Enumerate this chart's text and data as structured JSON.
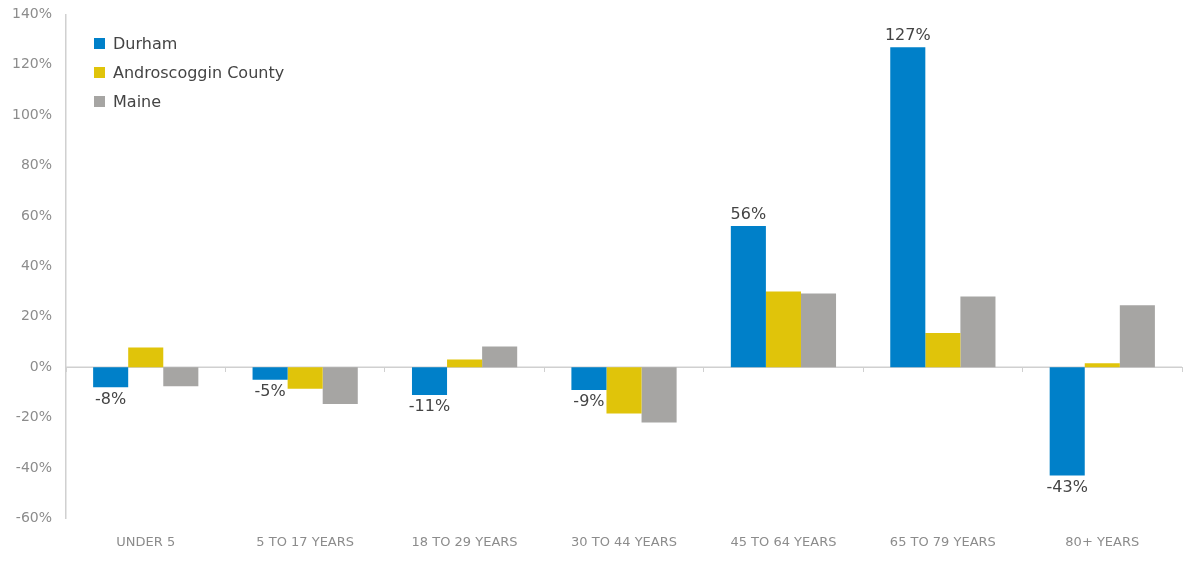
{
  "chart_data": {
    "type": "bar",
    "categories": [
      "UNDER 5",
      "5 TO 17 YEARS",
      "18 TO 29 YEARS",
      "30 TO 44 YEARS",
      "45 TO 64 YEARS",
      "65 TO 79 YEARS",
      "80+ YEARS"
    ],
    "series": [
      {
        "name": "Durham",
        "color": "#0080c9",
        "values": [
          -8,
          -5,
          -11,
          -9,
          56,
          127,
          -43
        ],
        "value_labels": [
          "-8%",
          "-5%",
          "-11%",
          "-9%",
          "56%",
          "127%",
          "-43%"
        ]
      },
      {
        "name": "Androscoggin County",
        "color": "#e0c40a",
        "values": [
          7.8,
          -8.6,
          3.1,
          -18.4,
          30,
          13.6,
          1.6
        ]
      },
      {
        "name": "Maine",
        "color": "#a6a5a3",
        "values": [
          -7.6,
          -14.6,
          8.2,
          -21.9,
          29.2,
          28.1,
          24.6
        ]
      }
    ],
    "ylim": [
      -60,
      140
    ],
    "yticks": [
      {
        "value": -60,
        "label": "-60%"
      },
      {
        "value": -40,
        "label": "-40%"
      },
      {
        "value": -20,
        "label": "-20%"
      },
      {
        "value": 0,
        "label": "0%"
      },
      {
        "value": 20,
        "label": "20%"
      },
      {
        "value": 40,
        "label": "40%"
      },
      {
        "value": 60,
        "label": "60%"
      },
      {
        "value": 80,
        "label": "80%"
      },
      {
        "value": 100,
        "label": "100%"
      },
      {
        "value": 120,
        "label": "120%"
      },
      {
        "value": 140,
        "label": "140%"
      }
    ],
    "ref_lines": [
      {
        "axis": "y",
        "value": 0,
        "color": "#d0d0d0"
      }
    ],
    "grid": false,
    "legend": "top left"
  }
}
